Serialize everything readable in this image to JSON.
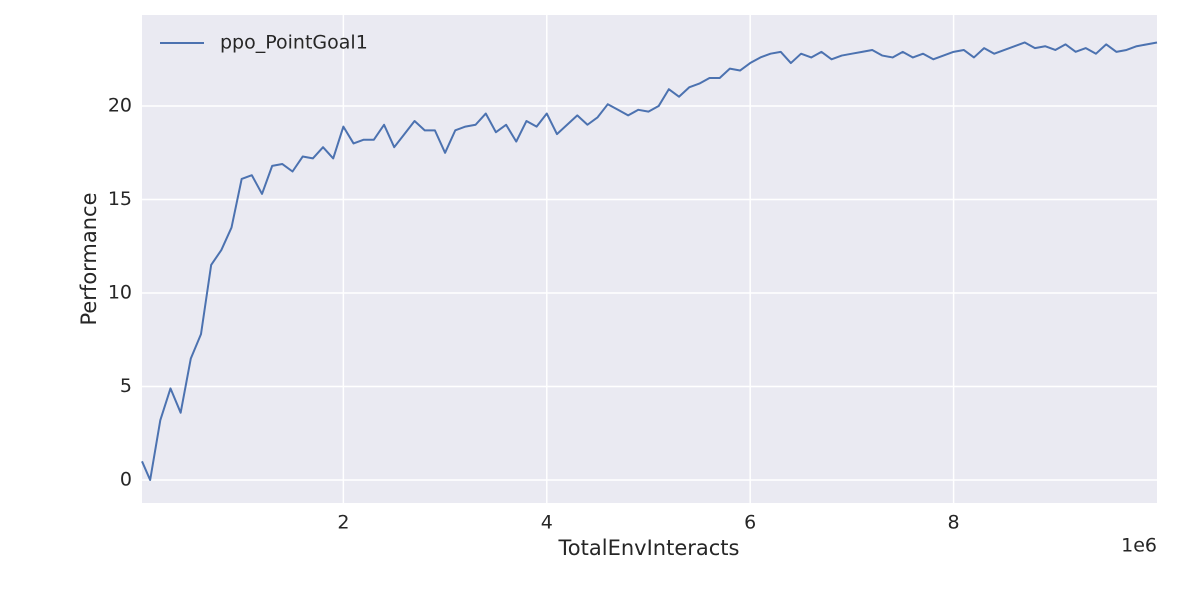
{
  "chart_data": {
    "type": "line",
    "xlabel": "TotalEnvInteracts",
    "ylabel": "Performance",
    "x_offset_label": "1e6",
    "x": [
      0.02,
      0.1,
      0.2,
      0.3,
      0.4,
      0.5,
      0.6,
      0.7,
      0.8,
      0.9,
      1.0,
      1.1,
      1.2,
      1.3,
      1.4,
      1.5,
      1.6,
      1.7,
      1.8,
      1.9,
      2.0,
      2.1,
      2.2,
      2.3,
      2.4,
      2.5,
      2.6,
      2.7,
      2.8,
      2.9,
      3.0,
      3.1,
      3.2,
      3.3,
      3.4,
      3.5,
      3.6,
      3.7,
      3.8,
      3.9,
      4.0,
      4.1,
      4.2,
      4.3,
      4.4,
      4.5,
      4.6,
      4.7,
      4.8,
      4.9,
      5.0,
      5.1,
      5.2,
      5.3,
      5.4,
      5.5,
      5.6,
      5.7,
      5.8,
      5.9,
      6.0,
      6.1,
      6.2,
      6.3,
      6.4,
      6.5,
      6.6,
      6.7,
      6.8,
      6.9,
      7.0,
      7.1,
      7.2,
      7.3,
      7.4,
      7.5,
      7.6,
      7.7,
      7.8,
      7.9,
      8.0,
      8.1,
      8.2,
      8.3,
      8.4,
      8.5,
      8.6,
      8.7,
      8.8,
      8.9,
      9.0,
      9.1,
      9.2,
      9.3,
      9.4,
      9.5,
      9.6,
      9.7,
      9.8,
      9.9,
      10.0
    ],
    "series": [
      {
        "name": "ppo_PointGoal1",
        "color": "#4c72b0",
        "values": [
          1.0,
          0.0,
          3.2,
          4.9,
          3.6,
          6.5,
          7.8,
          11.5,
          12.3,
          13.5,
          16.1,
          16.3,
          15.3,
          16.8,
          16.9,
          16.5,
          17.3,
          17.2,
          17.8,
          17.2,
          18.9,
          18.0,
          18.2,
          18.2,
          19.0,
          17.8,
          18.5,
          19.2,
          18.7,
          18.7,
          17.5,
          18.7,
          18.9,
          19.0,
          19.6,
          18.6,
          19.0,
          18.1,
          19.2,
          18.9,
          19.6,
          18.5,
          19.0,
          19.5,
          19.0,
          19.4,
          20.1,
          19.8,
          19.5,
          19.8,
          19.7,
          20.0,
          20.9,
          20.5,
          21.0,
          21.2,
          21.5,
          21.5,
          22.0,
          21.9,
          22.3,
          22.6,
          22.8,
          22.9,
          22.3,
          22.8,
          22.6,
          22.9,
          22.5,
          22.7,
          22.8,
          22.9,
          23.0,
          22.7,
          22.6,
          22.9,
          22.6,
          22.8,
          22.5,
          22.7,
          22.9,
          23.0,
          22.6,
          23.1,
          22.8,
          23.0,
          23.2,
          23.4,
          23.1,
          23.2,
          23.0,
          23.3,
          22.9,
          23.1,
          22.8,
          23.3,
          22.9,
          23.0,
          23.2,
          23.3,
          23.4
        ]
      }
    ],
    "xlim": [
      0.02,
      10.0
    ],
    "ylim": [
      -1.23,
      24.87
    ],
    "xticks": [
      2,
      4,
      6,
      8
    ],
    "yticks": [
      0,
      5,
      10,
      15,
      20
    ],
    "grid": true,
    "legend": "upper left"
  }
}
